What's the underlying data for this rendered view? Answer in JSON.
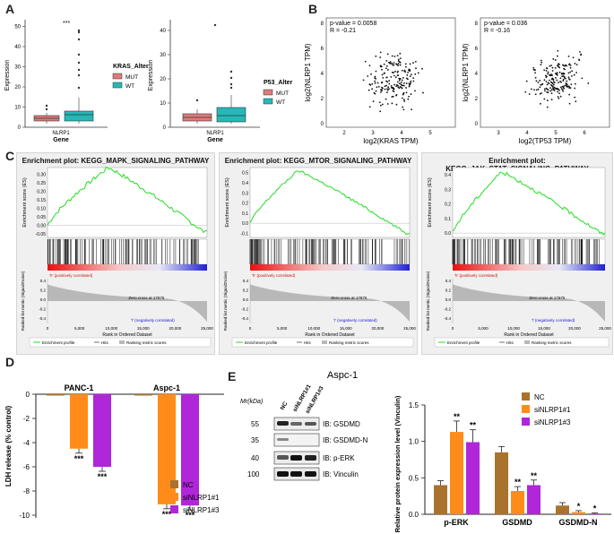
{
  "panels": {
    "a": "A",
    "b": "B",
    "c": "C",
    "d": "D",
    "e": "E"
  },
  "panel_a": {
    "left": {
      "ylabel": "Expression",
      "xlabel": "Gene",
      "xtick": "NLRP1",
      "legend_title": "KRAS_Alter",
      "legend": [
        "MUT",
        "WT"
      ],
      "significance": "***",
      "yticks": [
        "0",
        "10",
        "20",
        "30",
        "40",
        "50"
      ]
    },
    "right": {
      "ylabel": "Expression",
      "xlabel": "Gene",
      "xtick": "NLRP1",
      "legend_title": "P53_Alter",
      "legend": [
        "MUT",
        "WT"
      ],
      "yticks": [
        "0",
        "10",
        "20",
        "30",
        "40"
      ]
    },
    "colors": {
      "mut": "#e07a7a",
      "wt": "#26b8b8"
    }
  },
  "panel_b": {
    "left": {
      "pvalue": "p-value = 0.0058",
      "r": "R = -0.21",
      "xlabel": "log2(KRAS TPM)",
      "ylabel": "log2(NLRP1 TPM)",
      "xticks": [
        "2",
        "3",
        "4",
        "5"
      ],
      "yticks": [
        "0",
        "2",
        "4",
        "6",
        "8"
      ]
    },
    "right": {
      "pvalue": "p-value = 0.036",
      "r": "R = -0.16",
      "xlabel": "log2(TP53 TPM)",
      "ylabel": "log2(NLRP1 TPM)",
      "xticks": [
        "3",
        "4",
        "5",
        "6"
      ],
      "yticks": [
        "0",
        "2",
        "4",
        "6",
        "8"
      ]
    }
  },
  "panel_c": {
    "plots": [
      {
        "title": "Enrichment plot: KEGG_MAPK_SIGNALING_PATHWAY",
        "es_ticks": [
          "0.30",
          "0.25",
          "0.20",
          "0.15",
          "0.10",
          "0.05",
          "0.00",
          "-0.05"
        ]
      },
      {
        "title": "Enrichment plot: KEGG_MTOR_SIGNALING_PATHWAY",
        "es_ticks": [
          "0.5",
          "0.4",
          "0.3",
          "0.2",
          "0.1",
          "0.0",
          "-0.1"
        ]
      },
      {
        "title": "Enrichment plot: KEGG_JAK_STAT_SIGNALING_PATHWAY",
        "es_ticks": [
          "0.4",
          "0.3",
          "0.2",
          "0.1",
          "0.0"
        ]
      }
    ],
    "es_label": "Enrichment score (ES)",
    "rank_label": "Ranked list metric (Signal2Noise)",
    "xlabel": "Rank in Ordered Dataset",
    "xticks": [
      "0",
      "5,000",
      "10,000",
      "15,000",
      "20,000",
      "25,000"
    ],
    "rank_ticks": [
      "0.4",
      "0.2",
      "0.0",
      "-0.2",
      "-0.4"
    ],
    "pos_label": "'h' (positively correlated)",
    "neg_label": "'l' (negatively correlated)",
    "zero_cross": "Zero cross at 17875",
    "legend": [
      "Enrichment profile",
      "Hits",
      "Ranking metric scores"
    ]
  },
  "panel_d": {
    "ylabel": "LDH release (% control)",
    "groups": [
      "PANC-1",
      "Aspc-1"
    ],
    "yticks": [
      "0",
      "-2",
      "-4",
      "-6",
      "-8",
      "-10"
    ],
    "series": [
      {
        "name": "NC",
        "color": "#a9732e",
        "values": [
          -0.1,
          -0.1
        ]
      },
      {
        "name": "siNLRP1#1",
        "color": "#ff8c1a",
        "values": [
          -4.5,
          -9.1
        ]
      },
      {
        "name": "siNLRP1#3",
        "color": "#b026d9",
        "values": [
          -6.0,
          -9.2
        ]
      }
    ],
    "sig": [
      "***",
      "***",
      "***",
      "***"
    ]
  },
  "panel_e": {
    "title": "Aspc-1",
    "mr_label": "Mr(kDa)",
    "lanes": [
      "NC",
      "siNLRP1#1",
      "siNLRP1#3"
    ],
    "bands": [
      {
        "kda": "55",
        "label": "IB: GSDMD"
      },
      {
        "kda": "35",
        "label": "IB: GSDMD-N"
      },
      {
        "kda": "40",
        "label": "IB: p-ERK"
      },
      {
        "kda": "100",
        "label": "IB: Vinculin"
      }
    ]
  },
  "chart_data": {
    "type": "bar",
    "title": "",
    "ylabel": "Relative protein expression level (Vinculin)",
    "categories": [
      "p-ERK",
      "GSDMD",
      "GSDMD-N"
    ],
    "ylim": [
      0,
      1.5
    ],
    "yticks": [
      "0.0",
      "0.5",
      "1.0",
      "1.5"
    ],
    "series": [
      {
        "name": "NC",
        "color": "#a9732e",
        "values": [
          0.4,
          0.85,
          0.12
        ]
      },
      {
        "name": "siNLRP1#1",
        "color": "#ff8c1a",
        "values": [
          1.13,
          0.32,
          0.03
        ]
      },
      {
        "name": "siNLRP1#3",
        "color": "#b026d9",
        "values": [
          0.99,
          0.4,
          0.01
        ]
      }
    ],
    "sig": [
      [
        "",
        "**",
        "**"
      ],
      [
        "",
        "**",
        "**"
      ],
      [
        "",
        "*",
        "*"
      ]
    ]
  }
}
